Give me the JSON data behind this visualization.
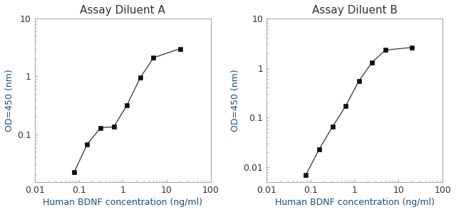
{
  "plot_A": {
    "title": "Assay Diluent A",
    "x": [
      0.078,
      0.156,
      0.313,
      0.625,
      1.25,
      2.5,
      5.0,
      20.0
    ],
    "y": [
      0.022,
      0.068,
      0.13,
      0.135,
      0.32,
      0.95,
      2.1,
      3.0
    ],
    "xlim": [
      0.01,
      100
    ],
    "ylim_bottom": 0.015,
    "ylim_top": 10,
    "yticks": [
      0.1,
      1,
      10
    ],
    "xlabel": "Human BDNF concentration (ng/ml)",
    "ylabel": "OD=450 (nm)"
  },
  "plot_B": {
    "title": "Assay Diluent B",
    "x": [
      0.078,
      0.156,
      0.313,
      0.625,
      1.25,
      2.5,
      5.0,
      20.0
    ],
    "y": [
      0.007,
      0.023,
      0.065,
      0.17,
      0.55,
      1.3,
      2.3,
      2.6
    ],
    "xlim": [
      0.01,
      100
    ],
    "ylim_bottom": 0.005,
    "ylim_top": 10,
    "yticks": [
      0.01,
      0.1,
      1,
      10
    ],
    "xlabel": "Human BDNF concentration (ng/ml)",
    "ylabel": "OD=450 (nm)"
  },
  "line_color": "#333333",
  "marker": "s",
  "marker_color": "#111111",
  "marker_size": 4,
  "title_fontsize": 11,
  "label_fontsize": 9,
  "tick_fontsize": 9,
  "axis_color": "#aaaaaa",
  "background_color": "#ffffff",
  "label_color": "#1a4e7a",
  "title_color": "#333333"
}
